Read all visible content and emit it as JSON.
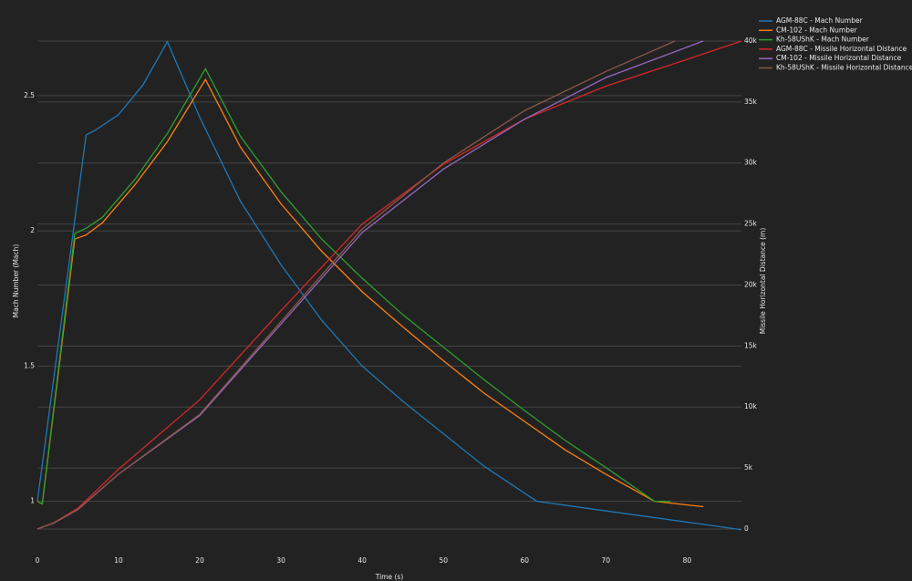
{
  "chart_data": {
    "type": "line",
    "x_label": "Time (s)",
    "y_label": "Mach Number (Mach)",
    "y2_label": "Missile Horizontal Distance (m)",
    "xlim": [
      0,
      86.7
    ],
    "xticks": [
      0,
      10,
      20,
      30,
      40,
      50,
      60,
      70,
      80
    ],
    "ylim": [
      0.83,
      2.8
    ],
    "yticks": [
      1,
      1.5,
      2,
      2.5
    ],
    "y2lim": [
      -1500,
      42170
    ],
    "y2ticks": [
      0,
      {
        "value": 5000,
        "label": "5k"
      },
      {
        "value": 10000,
        "label": "10k"
      },
      {
        "value": 15000,
        "label": "15k"
      },
      {
        "value": 20000,
        "label": "20k"
      },
      {
        "value": 25000,
        "label": "25k"
      },
      {
        "value": 30000,
        "label": "30k"
      },
      {
        "value": 35000,
        "label": "35k"
      },
      {
        "value": 40000,
        "label": "40k"
      }
    ],
    "grid": true,
    "legend": "top-right",
    "series": [
      {
        "name": "AGM-88C - Mach Number",
        "color": "#1f77b4",
        "axis": "y",
        "x": [
          0,
          6,
          7,
          10,
          13,
          16,
          20,
          25,
          30,
          35,
          40,
          45,
          50,
          55,
          61.5,
          86.7
        ],
        "values": [
          1.0,
          2.355,
          2.37,
          2.43,
          2.54,
          2.7,
          2.42,
          2.11,
          1.875,
          1.67,
          1.5,
          1.37,
          1.25,
          1.13,
          1.0,
          0.895
        ]
      },
      {
        "name": "CM-102 - Mach Number",
        "color": "#ff7f0e",
        "axis": "y",
        "x": [
          0,
          0.6,
          4.6,
          6,
          8,
          12,
          16,
          20.7,
          25,
          30,
          35,
          40,
          45,
          50,
          55,
          60,
          65,
          70,
          76,
          82
        ],
        "values": [
          1.0,
          0.99,
          1.97,
          1.985,
          2.03,
          2.17,
          2.33,
          2.56,
          2.31,
          2.1,
          1.925,
          1.775,
          1.645,
          1.52,
          1.4,
          1.295,
          1.19,
          1.1,
          1.0,
          0.98
        ]
      },
      {
        "name": "Kh-58UShK - Mach Number",
        "color": "#2ca02c",
        "axis": "y",
        "x": [
          0,
          0.6,
          4.6,
          6,
          8,
          12,
          16,
          20.7,
          25,
          30,
          35,
          40,
          45,
          50,
          55,
          60,
          65,
          70,
          76,
          78
        ],
        "values": [
          1.0,
          0.99,
          1.99,
          2.01,
          2.05,
          2.19,
          2.36,
          2.6,
          2.35,
          2.145,
          1.97,
          1.825,
          1.69,
          1.57,
          1.45,
          1.335,
          1.225,
          1.125,
          1.0,
          1.0
        ]
      },
      {
        "name": "AGM-88C - Missile Horizontal Distance",
        "color": "#d62728",
        "axis": "y2",
        "x": [
          0,
          2,
          5,
          10,
          20,
          30,
          40,
          50,
          60,
          70,
          80,
          86.7
        ],
        "values": [
          0,
          500,
          1700,
          4900,
          10600,
          17900,
          25000,
          29900,
          33600,
          36300,
          38500,
          40000
        ]
      },
      {
        "name": "CM-102 - Missile Horizontal Distance",
        "color": "#9467bd",
        "axis": "y2",
        "x": [
          0,
          2,
          5,
          10,
          20,
          30,
          40,
          50,
          60,
          70,
          82
        ],
        "values": [
          0,
          480,
          1600,
          4500,
          9300,
          16800,
          24300,
          29500,
          33600,
          37000,
          40000
        ]
      },
      {
        "name": "Kh-58UShK - Missile Horizontal Distance",
        "color": "#8c564b",
        "axis": "y2",
        "x": [
          0,
          2,
          5,
          10,
          20,
          30,
          40,
          50,
          60,
          70,
          78.5
        ],
        "values": [
          0,
          480,
          1600,
          4500,
          9400,
          17000,
          24600,
          30000,
          34300,
          37500,
          40000
        ]
      }
    ]
  }
}
